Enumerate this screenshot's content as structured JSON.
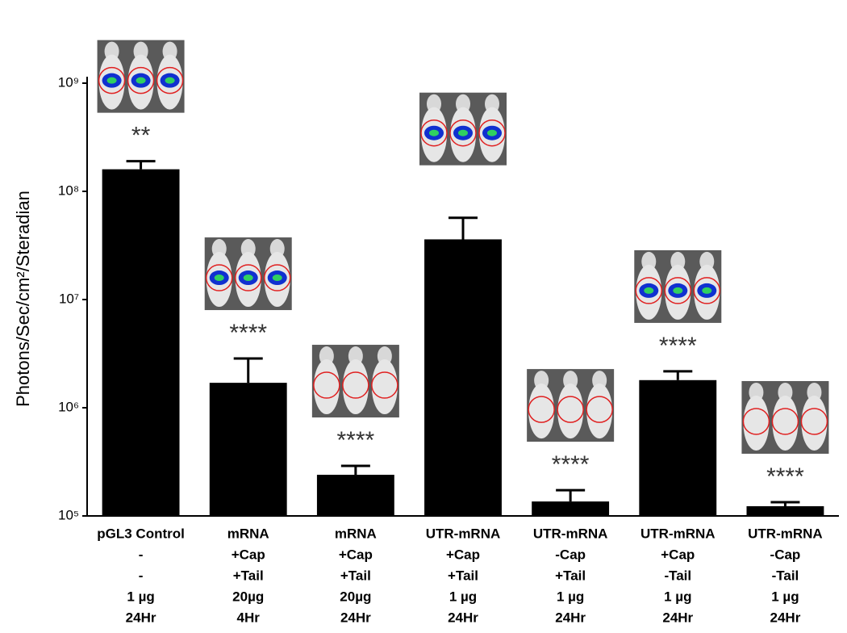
{
  "chart_data": {
    "type": "bar",
    "y_label": "Photons/Sec/cm²/Steradian",
    "categories": [
      [
        "pGL3 Control",
        "-",
        "-",
        "1 µg",
        "24Hr"
      ],
      [
        "mRNA",
        "+Cap",
        "+Tail",
        "20µg",
        "4Hr"
      ],
      [
        "mRNA",
        "+Cap",
        "+Tail",
        "20µg",
        "24Hr"
      ],
      [
        "UTR-mRNA",
        "+Cap",
        "+Tail",
        "1 µg",
        "24Hr"
      ],
      [
        "UTR-mRNA",
        "-Cap",
        "+Tail",
        "1 µg",
        "24Hr"
      ],
      [
        "UTR-mRNA",
        "+Cap",
        "-Tail",
        "1 µg",
        "24Hr"
      ],
      [
        "UTR-mRNA",
        "-Cap",
        "-Tail",
        "1 µg",
        "24Hr"
      ]
    ],
    "values": [
      160000000,
      1700000,
      240000,
      36000000,
      136000,
      1800000,
      123000
    ],
    "errors": [
      30000000,
      1150000,
      50000,
      21000000,
      37000,
      370000,
      11000
    ],
    "annotations": [
      "**",
      "****",
      "****",
      null,
      "****",
      "****",
      "****"
    ],
    "color": "#000000",
    "log_scale": true,
    "ylim": [
      100000,
      1000000000
    ],
    "yticks": [
      {
        "value": 100000,
        "label": "10⁵"
      },
      {
        "value": 1000000,
        "label": "10⁶"
      },
      {
        "value": 10000000,
        "label": "10⁷"
      },
      {
        "value": 100000000,
        "label": "10⁸"
      },
      {
        "value": 1000000000,
        "label": "10⁹"
      }
    ],
    "grid": false
  }
}
